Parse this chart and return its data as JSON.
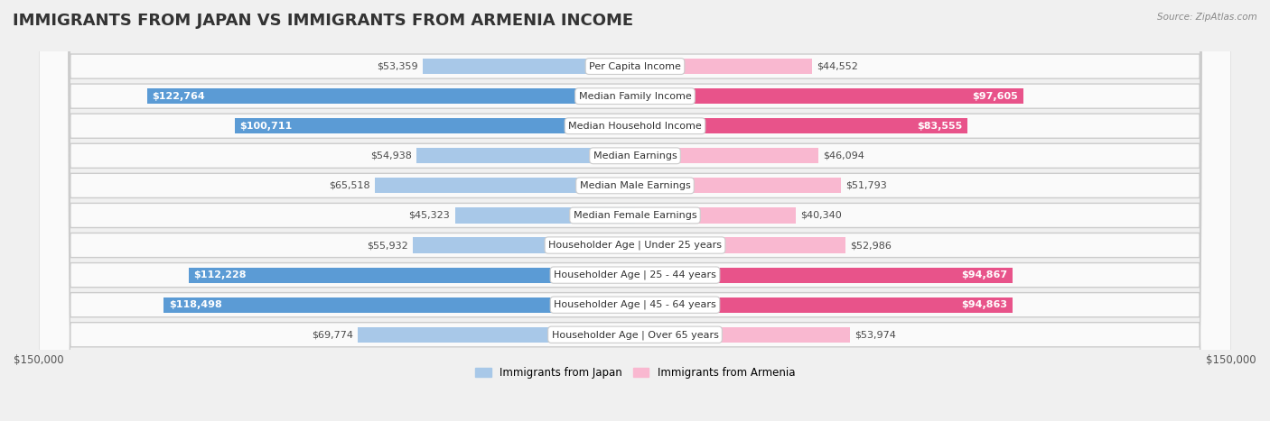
{
  "title": "IMMIGRANTS FROM JAPAN VS IMMIGRANTS FROM ARMENIA INCOME",
  "source": "Source: ZipAtlas.com",
  "categories": [
    "Per Capita Income",
    "Median Family Income",
    "Median Household Income",
    "Median Earnings",
    "Median Male Earnings",
    "Median Female Earnings",
    "Householder Age | Under 25 years",
    "Householder Age | 25 - 44 years",
    "Householder Age | 45 - 64 years",
    "Householder Age | Over 65 years"
  ],
  "japan_values": [
    53359,
    122764,
    100711,
    54938,
    65518,
    45323,
    55932,
    112228,
    118498,
    69774
  ],
  "armenia_values": [
    44552,
    97605,
    83555,
    46094,
    51793,
    40340,
    52986,
    94867,
    94863,
    53974
  ],
  "japan_color_light": "#a8c8e8",
  "japan_color_dark": "#5b9bd5",
  "armenia_color_light": "#f9b8d0",
  "armenia_color_dark": "#e8538a",
  "japan_dark_threshold": 80000,
  "armenia_dark_threshold": 80000,
  "japan_label_color_dark": "#4a4a4a",
  "armenia_label_color_dark": "#4a4a4a",
  "japan_label_color_light": "#ffffff",
  "armenia_label_color_light": "#ffffff",
  "bar_height": 0.52,
  "xlim": 150000,
  "background_color": "#f0f0f0",
  "row_bg_color": "#e8e8e8",
  "row_inner_color": "#fafafa",
  "title_fontsize": 13,
  "label_fontsize": 8,
  "category_fontsize": 8,
  "axis_fontsize": 8.5,
  "legend_label_japan": "Immigrants from Japan",
  "legend_label_armenia": "Immigrants from Armenia"
}
